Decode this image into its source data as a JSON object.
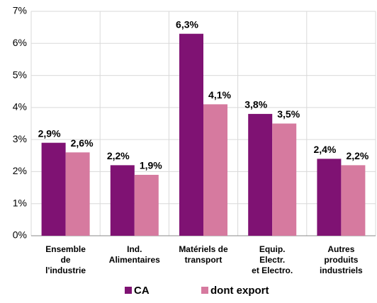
{
  "chart_data": {
    "type": "bar",
    "categories": [
      "Ensemble\nde\nl'industrie",
      "Ind.\nAlimentaires",
      "Matériels de\ntransport",
      "Equip.\nElectr.\net Electro.",
      "Autres\nproduits\nindustriels"
    ],
    "series": [
      {
        "name": "CA",
        "color": "#7f1273",
        "values": [
          2.9,
          2.2,
          6.3,
          3.8,
          2.4
        ],
        "value_labels": [
          "2,9%",
          "2,2%",
          "6,3%",
          "3,8%",
          "2,4%"
        ]
      },
      {
        "name": "dont export",
        "color": "#d67a9f",
        "values": [
          2.6,
          1.9,
          4.1,
          3.5,
          2.2
        ],
        "value_labels": [
          "2,6%",
          "1,9%",
          "4,1%",
          "3,5%",
          "2,2%"
        ]
      }
    ],
    "ylim": [
      0,
      7
    ],
    "yticks": [
      {
        "value": 0,
        "label": "0%"
      },
      {
        "value": 1,
        "label": "1%"
      },
      {
        "value": 2,
        "label": "2%"
      },
      {
        "value": 3,
        "label": "3%"
      },
      {
        "value": 4,
        "label": "4%"
      },
      {
        "value": 5,
        "label": "5%"
      },
      {
        "value": 6,
        "label": "6%"
      },
      {
        "value": 7,
        "label": "7%"
      }
    ],
    "legend": "bottom"
  }
}
